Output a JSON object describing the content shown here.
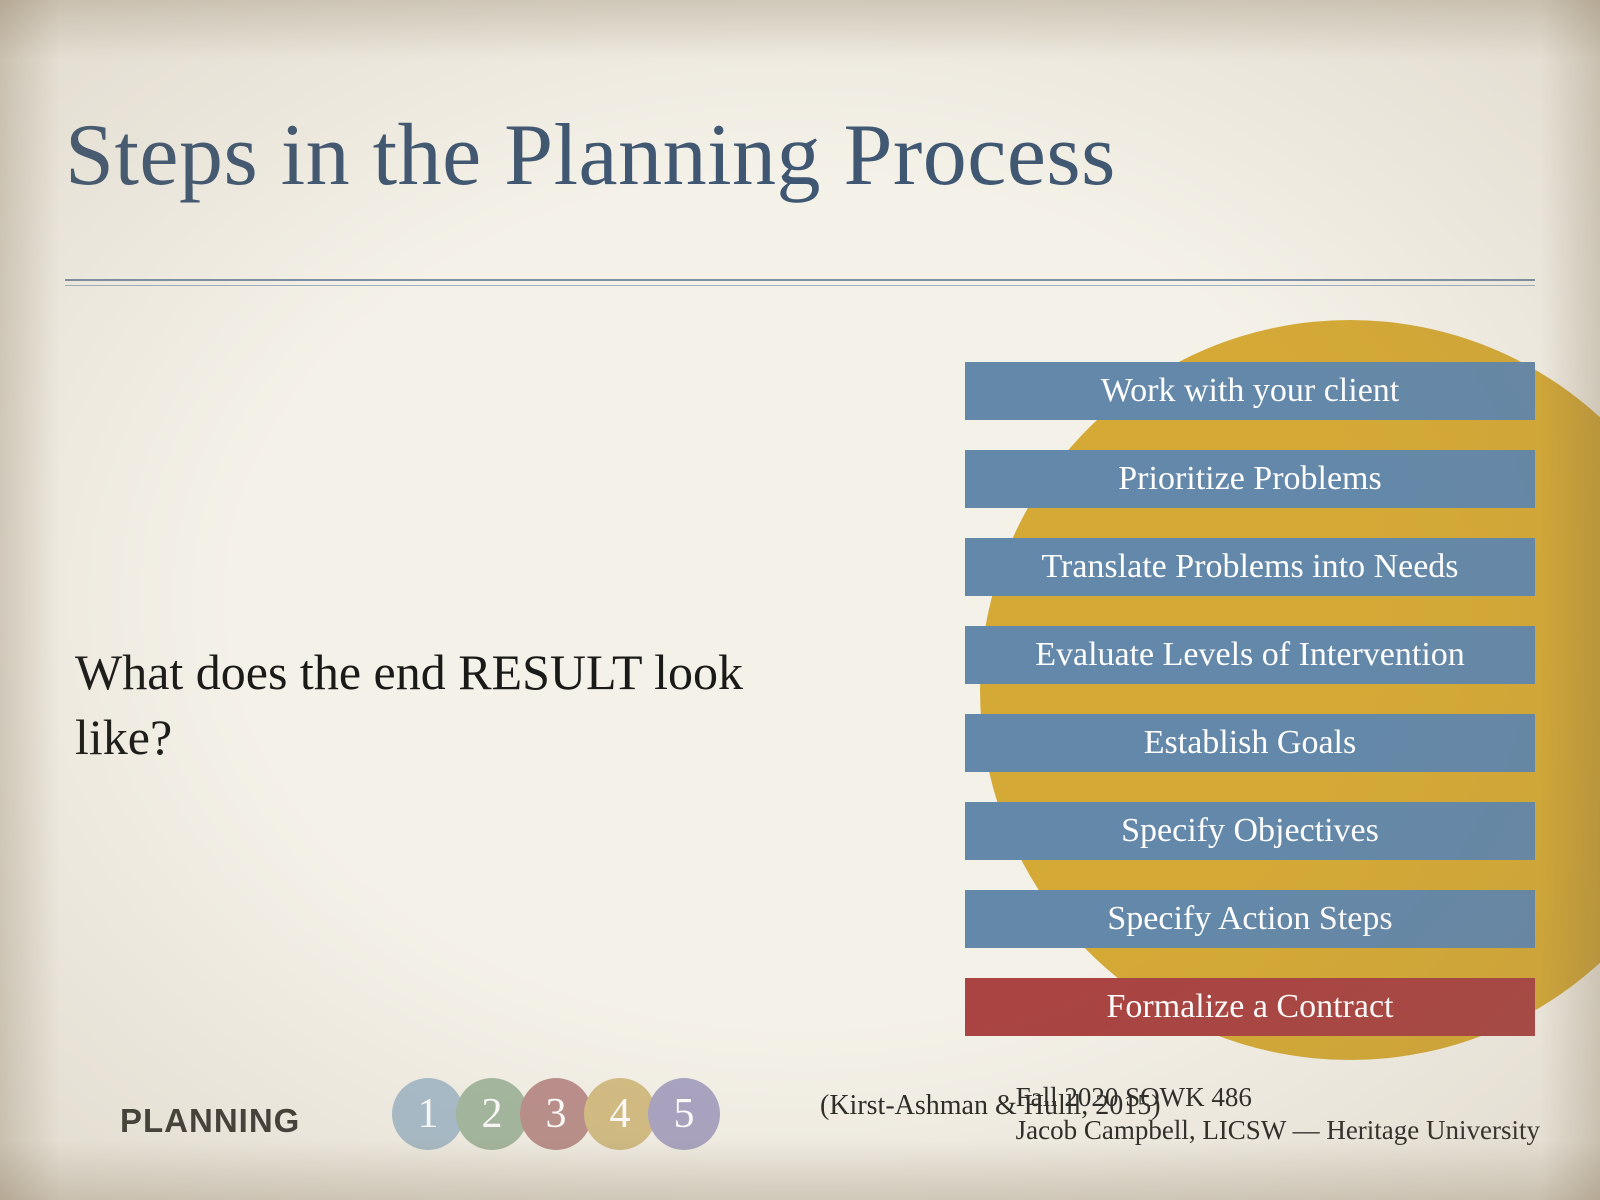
{
  "title": "Steps in the Planning Process",
  "body_text": "What does the end RESULT look like?",
  "accent_circle_color": "#d4a936",
  "title_color": "#3f5772",
  "body_color": "#1a1a18",
  "steps": {
    "default_color": "#6488a9",
    "highlight_color": "#a94442",
    "text_color": "#ffffff",
    "fontsize": 34,
    "items": [
      {
        "label": "Work with your client",
        "highlight": false
      },
      {
        "label": "Prioritize Problems",
        "highlight": false
      },
      {
        "label": "Translate Problems into Needs",
        "highlight": false
      },
      {
        "label": "Evaluate Levels of Intervention",
        "highlight": false
      },
      {
        "label": "Establish Goals",
        "highlight": false
      },
      {
        "label": "Specify Objectives",
        "highlight": false
      },
      {
        "label": "Specify Action Steps",
        "highlight": false
      },
      {
        "label": "Formalize a Contract",
        "highlight": true
      }
    ]
  },
  "footer": {
    "section_label": "PLANNING",
    "pager": [
      {
        "n": "1",
        "color": "#a8bdcb"
      },
      {
        "n": "2",
        "color": "#a4b8a0"
      },
      {
        "n": "3",
        "color": "#bb8f8c"
      },
      {
        "n": "4",
        "color": "#d3bd84"
      },
      {
        "n": "5",
        "color": "#a9a4c2"
      }
    ],
    "citation": "(Kirst-Ashman & Hulll, 2015)",
    "course": "Fall 2020 SOWK 486",
    "author": "Jacob Campbell, LICSW — Heritage University"
  },
  "background_color": "#f4f1e8"
}
